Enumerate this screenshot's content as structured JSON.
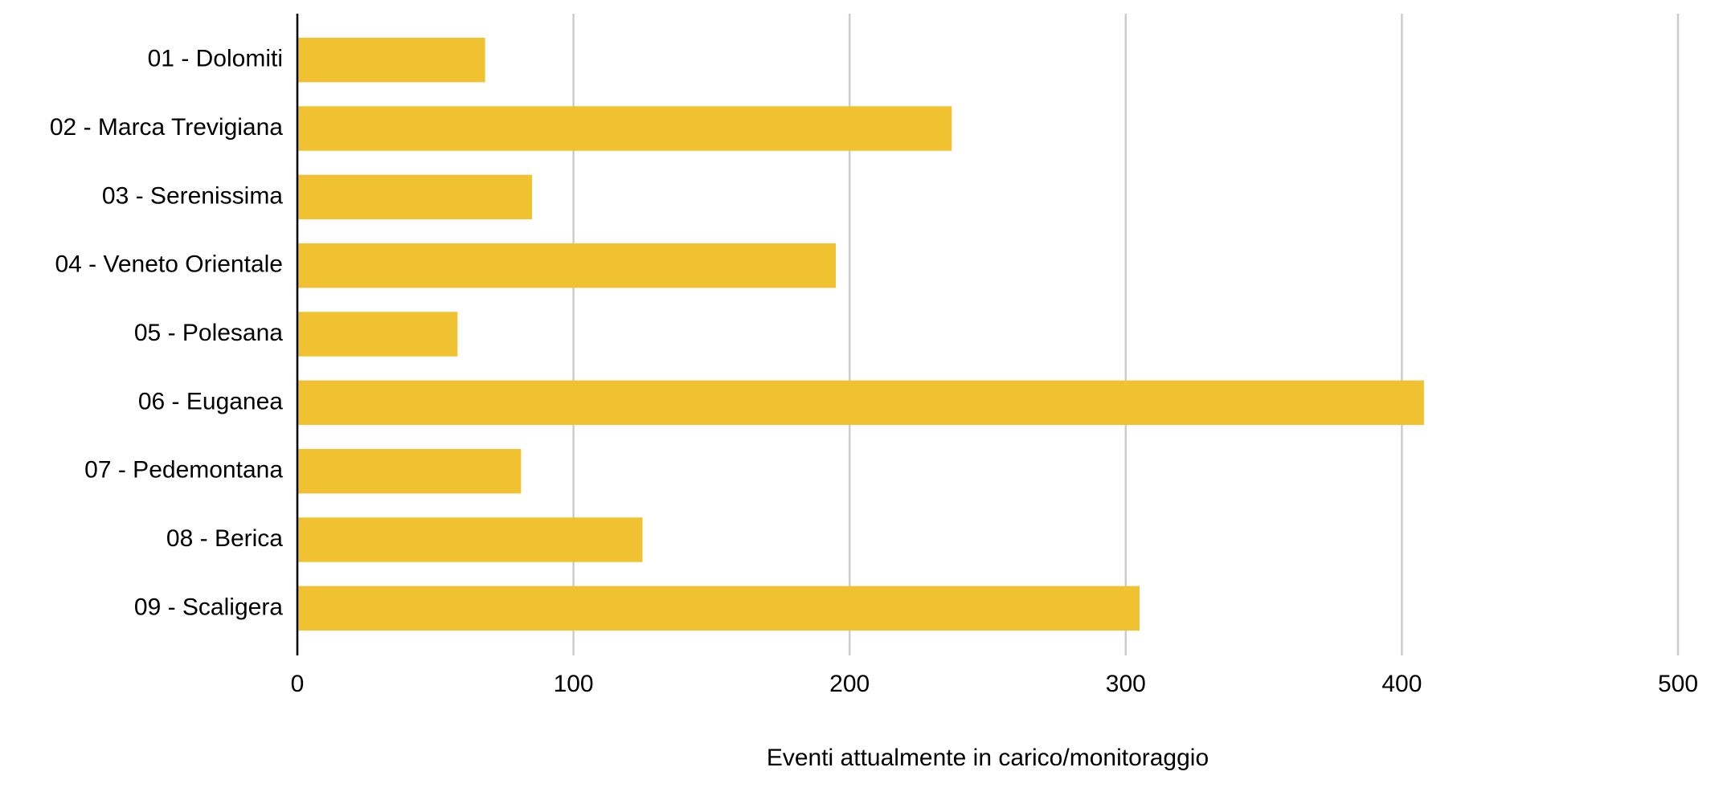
{
  "chart_data": {
    "type": "bar",
    "orientation": "horizontal",
    "x_axis_label": "Eventi attualmente in carico/monitoraggio",
    "categories": [
      "01 - Dolomiti",
      "02 - Marca Trevigiana",
      "03 - Serenissima",
      "04 - Veneto Orientale",
      "05 - Polesana",
      "06 - Euganea",
      "07 - Pedemontana",
      "08 - Berica",
      "09 - Scaligera"
    ],
    "values": [
      68,
      237,
      85,
      195,
      58,
      408,
      81,
      125,
      305
    ],
    "color": "#f0c232",
    "xlim": [
      0,
      500
    ],
    "xticks": [
      0,
      100,
      200,
      300,
      400,
      500
    ],
    "grid": true
  }
}
